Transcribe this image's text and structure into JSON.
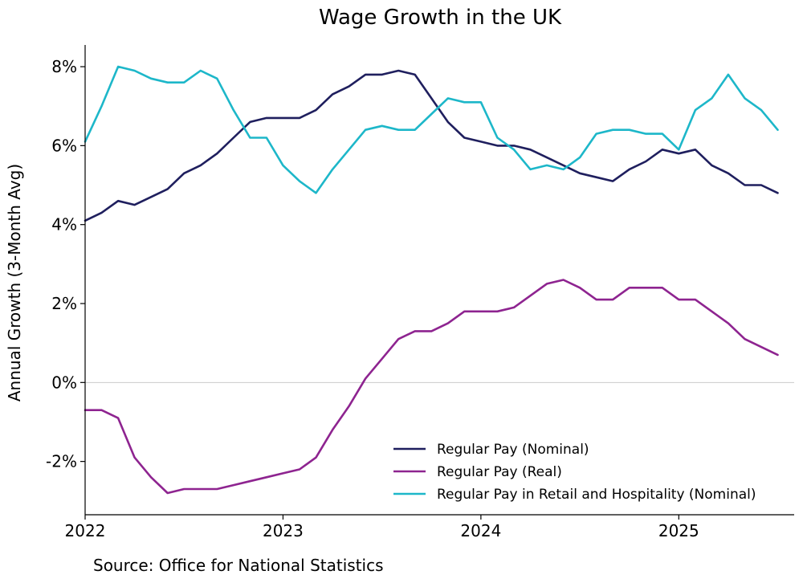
{
  "chart_data": {
    "type": "line",
    "title": "Wage Growth in the UK",
    "xlabel": "",
    "ylabel": "Annual Growth (3-Month Avg)",
    "xlim": [
      2022.0,
      2025.583
    ],
    "ylim": [
      -3.35,
      8.55
    ],
    "x_ticks": [
      2022,
      2023,
      2024,
      2025
    ],
    "x_tick_labels": [
      "2022",
      "2023",
      "2024",
      "2025"
    ],
    "y_ticks": [
      -2,
      0,
      2,
      4,
      6,
      8
    ],
    "y_tick_labels": [
      "-2%",
      "0%",
      "2%",
      "4%",
      "6%",
      "8%"
    ],
    "zero_line": true,
    "grid": false,
    "legend_position": "bottom-right",
    "x": [
      "2022-01",
      "2022-02",
      "2022-03",
      "2022-04",
      "2022-05",
      "2022-06",
      "2022-07",
      "2022-08",
      "2022-09",
      "2022-10",
      "2022-11",
      "2022-12",
      "2023-01",
      "2023-02",
      "2023-03",
      "2023-04",
      "2023-05",
      "2023-06",
      "2023-07",
      "2023-08",
      "2023-09",
      "2023-10",
      "2023-11",
      "2023-12",
      "2024-01",
      "2024-02",
      "2024-03",
      "2024-04",
      "2024-05",
      "2024-06",
      "2024-07",
      "2024-08",
      "2024-09",
      "2024-10",
      "2024-11",
      "2024-12",
      "2025-01",
      "2025-02",
      "2025-03",
      "2025-04",
      "2025-05",
      "2025-06",
      "2025-07"
    ],
    "series": [
      {
        "name": "Regular Pay (Nominal)",
        "color": "#1f1f5e",
        "values": [
          4.1,
          4.3,
          4.6,
          4.5,
          4.7,
          4.9,
          5.3,
          5.5,
          5.8,
          6.2,
          6.6,
          6.7,
          6.7,
          6.7,
          6.9,
          7.3,
          7.5,
          7.8,
          7.8,
          7.9,
          7.8,
          7.2,
          6.6,
          6.2,
          6.1,
          6.0,
          6.0,
          5.9,
          5.7,
          5.5,
          5.3,
          5.2,
          5.1,
          5.4,
          5.6,
          5.9,
          5.8,
          5.9,
          5.5,
          5.3,
          5.0,
          5.0,
          4.8
        ]
      },
      {
        "name": "Regular Pay (Real)",
        "color": "#8e2490",
        "values": [
          -0.7,
          -0.7,
          -0.9,
          -1.9,
          -2.4,
          -2.8,
          -2.7,
          -2.7,
          -2.7,
          -2.6,
          -2.5,
          -2.4,
          -2.3,
          -2.2,
          -1.9,
          -1.2,
          -0.6,
          0.1,
          0.6,
          1.1,
          1.3,
          1.3,
          1.5,
          1.8,
          1.8,
          1.8,
          1.9,
          2.2,
          2.5,
          2.6,
          2.4,
          2.1,
          2.1,
          2.4,
          2.4,
          2.4,
          2.1,
          2.1,
          1.8,
          1.5,
          1.1,
          0.9,
          0.7
        ]
      },
      {
        "name": "Regular Pay in Retail and Hospitality (Nominal)",
        "color": "#1db7c9",
        "values": [
          6.1,
          7.0,
          8.0,
          7.9,
          7.7,
          7.6,
          7.6,
          7.9,
          7.7,
          6.9,
          6.2,
          6.2,
          5.5,
          5.1,
          4.8,
          5.4,
          5.9,
          6.4,
          6.5,
          6.4,
          6.4,
          6.8,
          7.2,
          7.1,
          7.1,
          6.2,
          5.9,
          5.4,
          5.5,
          5.4,
          5.7,
          6.3,
          6.4,
          6.4,
          6.3,
          6.3,
          5.9,
          6.9,
          7.2,
          7.8,
          7.2,
          6.9,
          6.4
        ]
      }
    ]
  },
  "footer": {
    "source_text": "Source: Office for National Statistics"
  }
}
